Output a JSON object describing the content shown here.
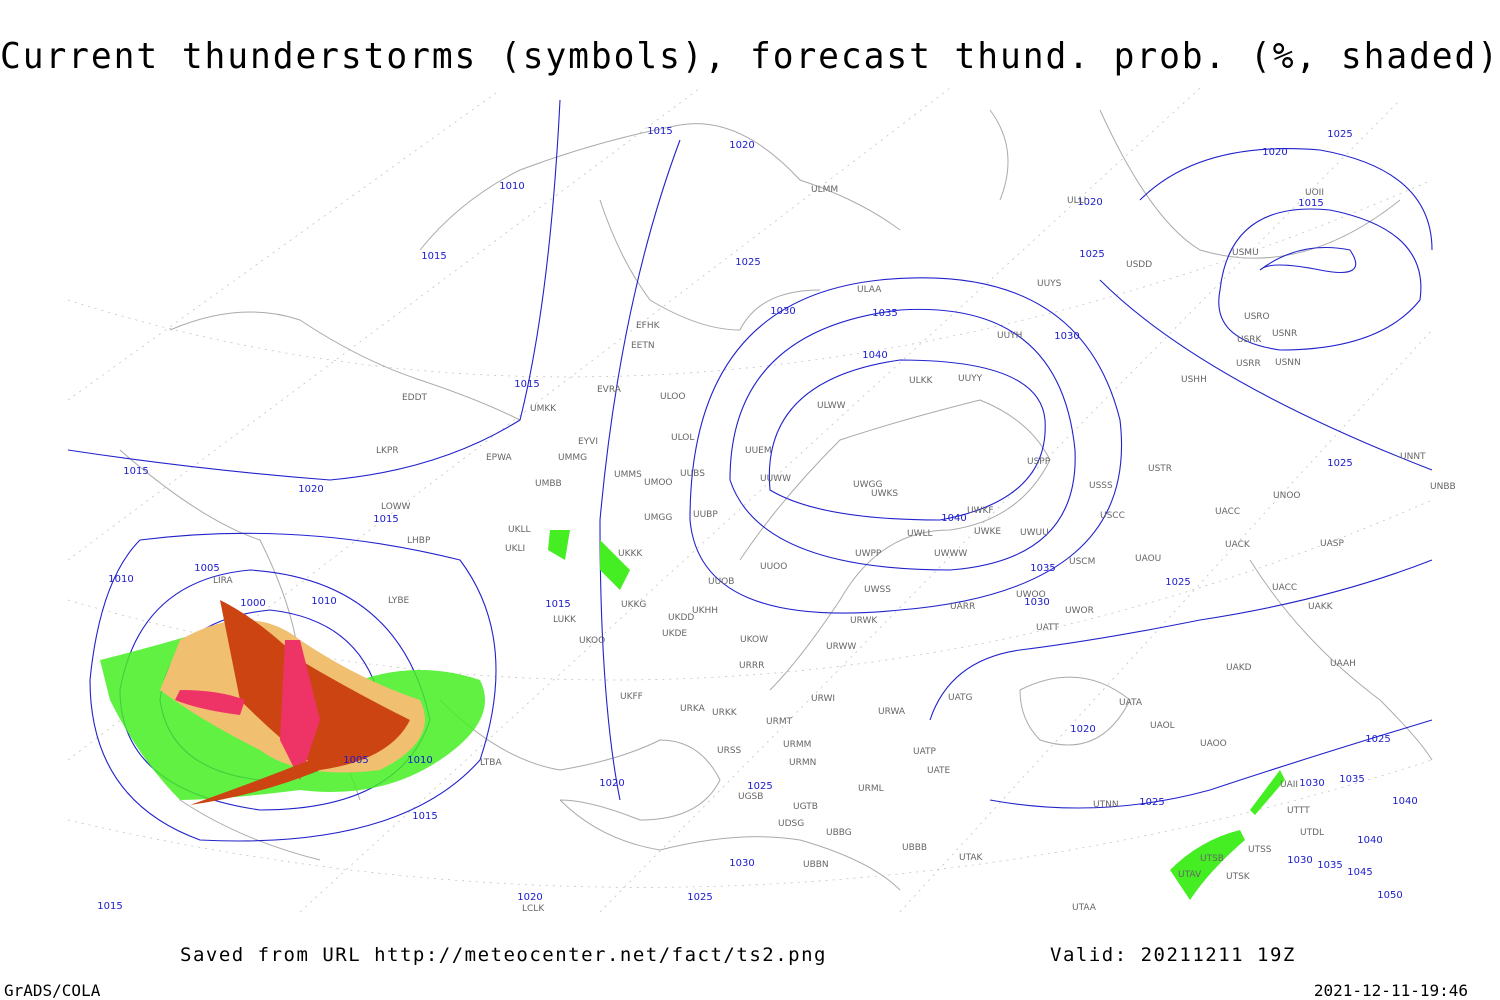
{
  "header": {
    "title": "Current thunderstorms (symbols), forecast thund. prob. (%, shaded)"
  },
  "footer": {
    "saved_from": "Saved from URL http://meteocenter.net/fact/ts2.png",
    "valid": "Valid: 20211211 19Z",
    "software": "GrADS/COLA",
    "timestamp": "2021-12-11-19:46"
  },
  "isobar_labels": [
    "1015",
    "1020",
    "1010",
    "1015",
    "1025",
    "1030",
    "1035",
    "1040",
    "1015",
    "1015",
    "1020",
    "1015",
    "1005",
    "1010",
    "1000",
    "1010",
    "1015",
    "1040",
    "1035",
    "1030",
    "1025",
    "1025",
    "1030",
    "1025",
    "1025",
    "1020",
    "1015",
    "1020",
    "1025",
    "1005",
    "1010",
    "1015",
    "1020",
    "1025",
    "1030",
    "1020",
    "1025",
    "1015",
    "1020",
    "1025",
    "1030",
    "1035",
    "1040",
    "1040",
    "1030",
    "1035",
    "1045",
    "1050"
  ],
  "stations": [
    "EFHK",
    "EETN",
    "EVRA",
    "ULOO",
    "EDDT",
    "UMKK",
    "EYVI",
    "ULOL",
    "LKPR",
    "EPWA",
    "UMMG",
    "UMMS",
    "UMOO",
    "UUBS",
    "UMBB",
    "UMGG",
    "UUBP",
    "LOWW",
    "LHBP",
    "UKLL",
    "UKLI",
    "UKKK",
    "UUOO",
    "UUOB",
    "UKHH",
    "UKKG",
    "UKDD",
    "UKOO",
    "UKDE",
    "LUKK",
    "LYBE",
    "LIRA",
    "UKOW",
    "URRR",
    "UKFF",
    "URKA",
    "URKK",
    "URMT",
    "URMM",
    "URMN",
    "URSS",
    "UGSB",
    "UGTB",
    "UDSG",
    "UBBG",
    "UBBN",
    "UBBB",
    "UTAK",
    "UTAA",
    "URML",
    "UATE",
    "UATP",
    "URWA",
    "URWI",
    "UATG",
    "URWW",
    "URWK",
    "UWSS",
    "UARR",
    "UWPP",
    "UWWW",
    "UWLL",
    "UWKE",
    "UWUU",
    "UWKS",
    "UWGG",
    "UWKF",
    "UUWW",
    "UUEM",
    "ULWW",
    "ULKK",
    "UUYY",
    "UUYH",
    "ULAA",
    "UUYS",
    "USDD",
    "ULLI",
    "ULMM",
    "USPP",
    "USTR",
    "USSS",
    "USCC",
    "USCM",
    "UAOU",
    "UWOO",
    "UWOR",
    "UATT",
    "UACC",
    "UACK",
    "UACC",
    "UAKK",
    "UASP",
    "UNOO",
    "UNNT",
    "UNBB",
    "UAAH",
    "UAKD",
    "UATA",
    "UAOL",
    "UAOO",
    "UTNN",
    "USHH",
    "USRR",
    "USRK",
    "USNN",
    "USNR",
    "USRO",
    "USMU",
    "UOII",
    "UTSS",
    "UTSB",
    "UTSK",
    "UTAV",
    "UTTT",
    "UTDL",
    "UAII",
    "LCLK",
    "LTBA"
  ]
}
